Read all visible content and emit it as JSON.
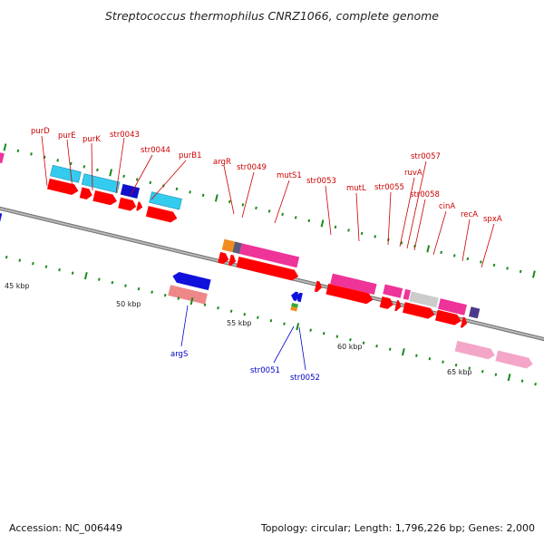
{
  "header": {
    "title": "Streptococcus thermophilus CNRZ1066, complete genome"
  },
  "footer": {
    "accession": "Accession: NC_006449",
    "topology": "Topology: circular; Length: 1,796,226 bp; Genes: 2,000"
  },
  "scale_labels": [
    "45 kbp",
    "50 kbp",
    "55 kbp",
    "60 kbp",
    "65 kbp"
  ],
  "forward_gene_labels": [
    "purD",
    "purE",
    "purK",
    "str0043",
    "str0044",
    "purB1",
    "argR",
    "str0049",
    "mutS1",
    "str0053",
    "mutL",
    "str0055",
    "ruvA",
    "str0057",
    "str0058",
    "cinA",
    "recA",
    "spxA"
  ],
  "reverse_gene_labels": [
    "argS",
    "str0051",
    "str0052"
  ],
  "colors": {
    "cds_forward": "#ff0000",
    "cds_reverse": "#0000ff",
    "cog_lightblue": "#33ccee",
    "cog_pink": "#ee3399",
    "cog_lightpink": "#f4a6c8",
    "cog_salmon": "#ee8888",
    "cog_grey": "#cccccc",
    "cog_orange": "#f28c1e",
    "cog_purple": "#4b3a8c",
    "cog_green": "#33aa33",
    "tick": "#1a8a1a",
    "backbone": "#888888",
    "label_forward": "#cc0000",
    "label_reverse": "#0000cc"
  }
}
